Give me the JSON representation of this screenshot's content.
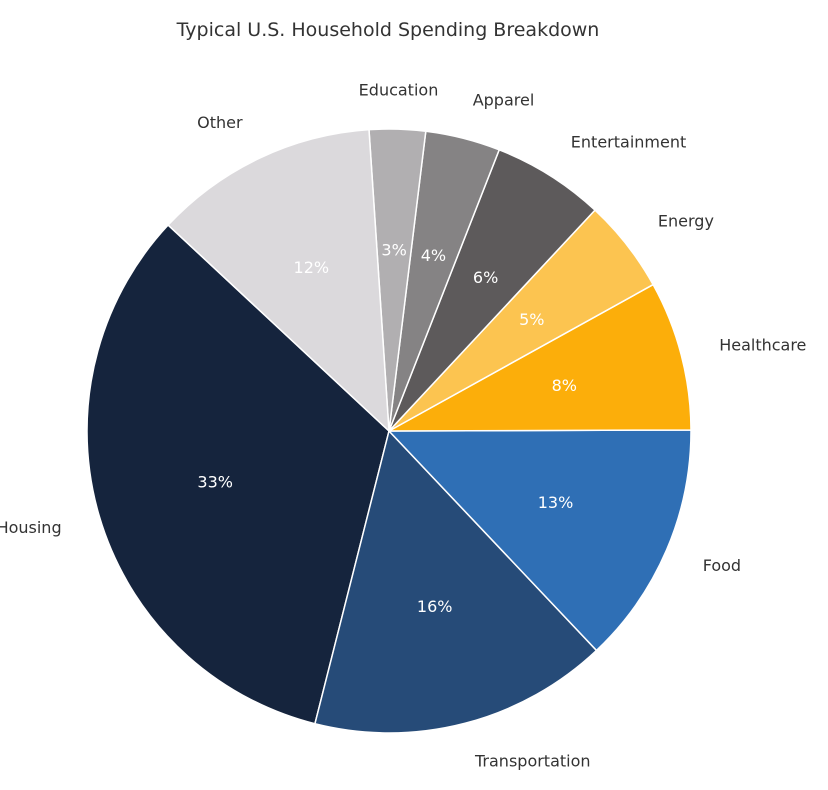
{
  "chart_data": {
    "type": "pie",
    "title": "Typical U.S. Household Spending Breakdown",
    "categories": [
      "Housing",
      "Transportation",
      "Food",
      "Healthcare",
      "Energy",
      "Entertainment",
      "Apparel",
      "Education",
      "Other"
    ],
    "values": [
      33,
      16,
      13,
      8,
      5,
      6,
      4,
      3,
      12
    ],
    "value_labels": [
      "33%",
      "16%",
      "13%",
      "8%",
      "5%",
      "6%",
      "4%",
      "3%",
      "12%"
    ],
    "colors": [
      "#15243d",
      "#264b78",
      "#2f6fb5",
      "#fcae0a",
      "#fcc450",
      "#5d5a5b",
      "#858384",
      "#b1afb1",
      "#dbd9dc"
    ],
    "label_colors": [
      "#ffffff",
      "#ffffff",
      "#ffffff",
      "#ffffff",
      "#ffffff",
      "#ffffff",
      "#ffffff",
      "#ffffff",
      "#ffffff"
    ],
    "start_angle_deg": 137,
    "direction": "counterclockwise"
  }
}
